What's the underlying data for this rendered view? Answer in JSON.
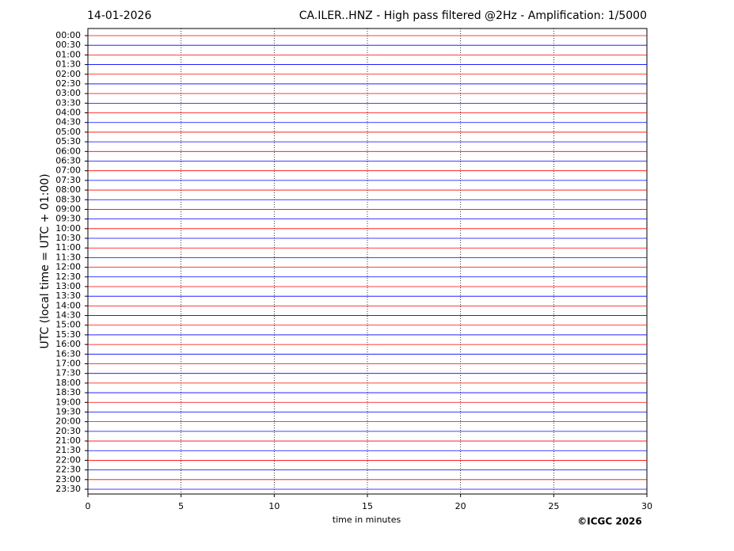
{
  "chart_data": {
    "type": "helicorder",
    "date": "14-01-2026",
    "title": "CA.ILER..HNZ - High pass filtered @2Hz - Amplification: 1/5000",
    "ylabel": "UTC (local time = UTC + 01:00)",
    "xlabel": "time in minutes",
    "copyright": "©ICGC 2026",
    "categories": [
      "00:00",
      "00:30",
      "01:00",
      "01:30",
      "02:00",
      "02:30",
      "03:00",
      "03:30",
      "04:00",
      "04:30",
      "05:00",
      "05:30",
      "06:00",
      "06:30",
      "07:00",
      "07:30",
      "08:00",
      "08:30",
      "09:00",
      "09:30",
      "10:00",
      "10:30",
      "11:00",
      "11:30",
      "12:00",
      "12:30",
      "13:00",
      "13:30",
      "14:00",
      "14:30",
      "15:00",
      "15:30",
      "16:00",
      "16:30",
      "17:00",
      "17:30",
      "18:00",
      "18:30",
      "19:00",
      "19:30",
      "20:00",
      "20:30",
      "21:00",
      "21:30",
      "22:00",
      "22:30",
      "23:00",
      "23:30"
    ],
    "xlim": [
      0,
      30
    ],
    "xticks": [
      0,
      5,
      10,
      15,
      20,
      25,
      30
    ],
    "grid": true,
    "trace_colors": [
      "#ff0000",
      "#0000ff"
    ]
  }
}
